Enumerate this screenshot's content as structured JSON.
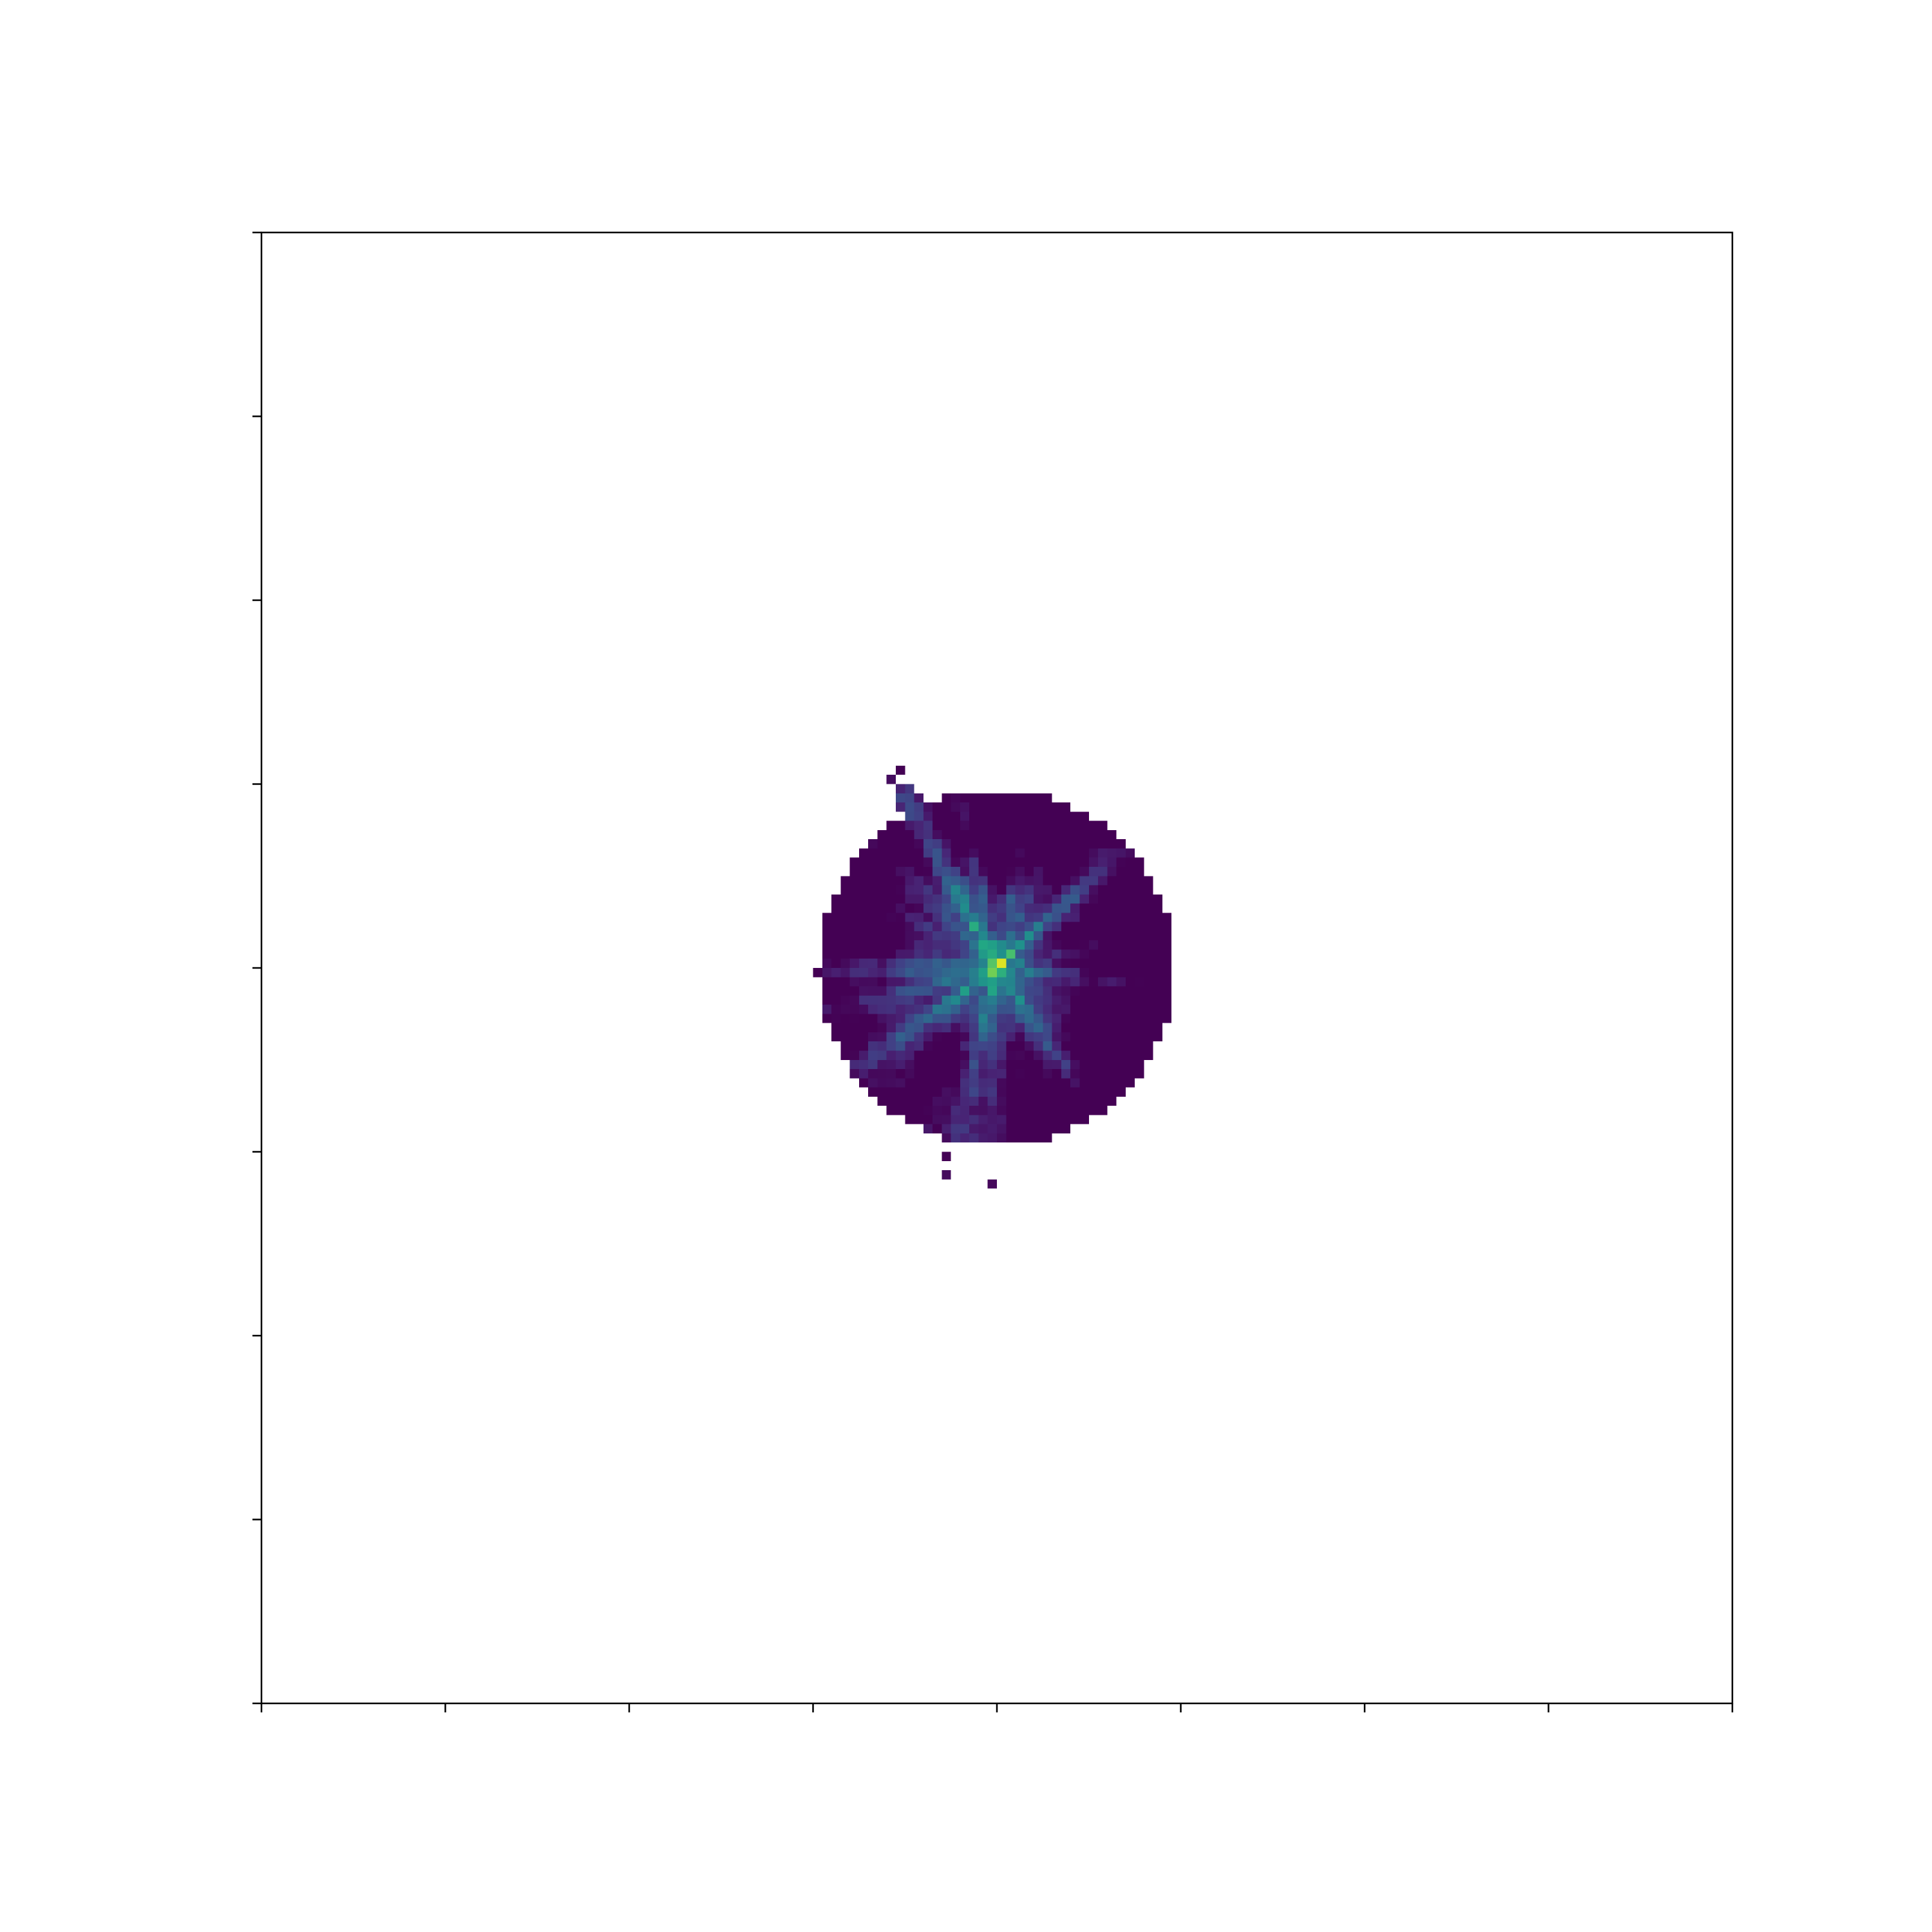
{
  "chart_data": {
    "type": "heatmap",
    "title": "",
    "xlabel": "",
    "ylabel": "",
    "colormap": "viridis",
    "masked_color": "#ffffff",
    "grid": false,
    "colorbar": false,
    "tick_labels_shown": false,
    "grid_size": [
      160,
      160
    ],
    "x_ticks": [
      0,
      20,
      40,
      60,
      80,
      100,
      120,
      140,
      160
    ],
    "y_ticks": [
      0,
      20,
      40,
      60,
      80,
      100,
      120,
      140,
      160
    ],
    "peak": {
      "x": 80,
      "y": 80,
      "value": 1.0
    },
    "value_range": [
      0.0,
      1.0
    ]
  },
  "colors": {
    "axis": "#000000",
    "background": "#ffffff",
    "peak": "#fde725",
    "low": "#440154"
  }
}
